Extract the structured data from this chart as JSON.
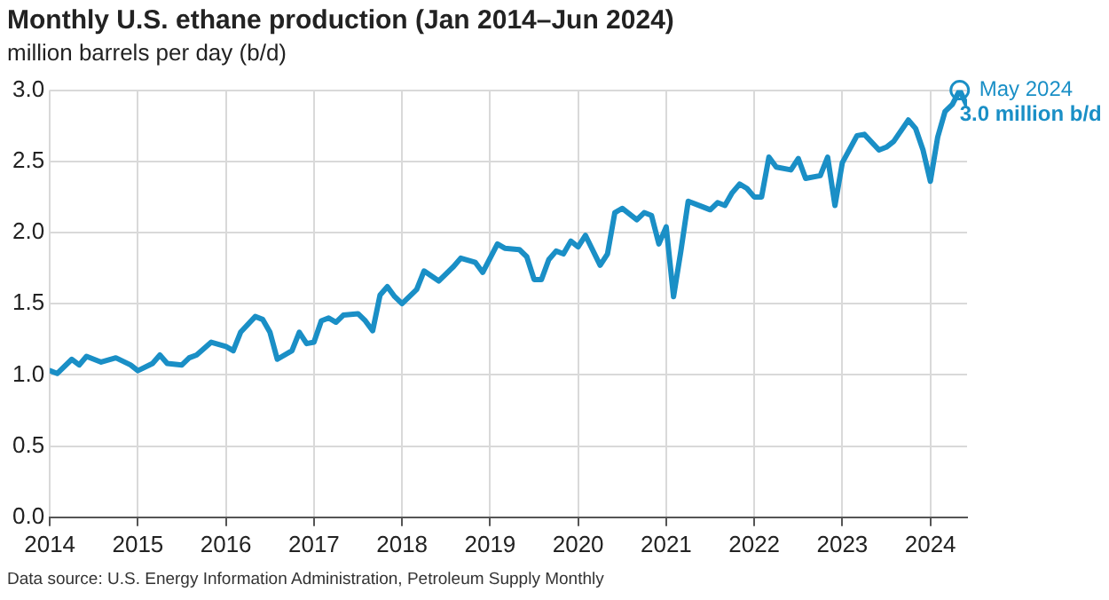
{
  "chart_data": {
    "type": "line",
    "title": "Monthly U.S. ethane production (Jan 2014–Jun 2024)",
    "ylabel": "million barrels per day (b/d)",
    "x": [
      "2014-01",
      "2014-02",
      "2014-04",
      "2014-05",
      "2014-06",
      "2014-08",
      "2014-10",
      "2014-12",
      "2015-01",
      "2015-03",
      "2015-04",
      "2015-05",
      "2015-07",
      "2015-08",
      "2015-09",
      "2015-11",
      "2016-01",
      "2016-02",
      "2016-03",
      "2016-05",
      "2016-06",
      "2016-07",
      "2016-08",
      "2016-10",
      "2016-11",
      "2016-12",
      "2017-01",
      "2017-02",
      "2017-03",
      "2017-04",
      "2017-05",
      "2017-07",
      "2017-08",
      "2017-09",
      "2017-10",
      "2017-11",
      "2017-12",
      "2018-01",
      "2018-03",
      "2018-04",
      "2018-06",
      "2018-08",
      "2018-09",
      "2018-11",
      "2018-12",
      "2019-02",
      "2019-03",
      "2019-05",
      "2019-06",
      "2019-07",
      "2019-08",
      "2019-09",
      "2019-10",
      "2019-11",
      "2019-12",
      "2020-01",
      "2020-02",
      "2020-04",
      "2020-05",
      "2020-06",
      "2020-07",
      "2020-09",
      "2020-10",
      "2020-11",
      "2020-12",
      "2021-01",
      "2021-02",
      "2021-03",
      "2021-04",
      "2021-06",
      "2021-07",
      "2021-08",
      "2021-09",
      "2021-10",
      "2021-11",
      "2021-12",
      "2022-01",
      "2022-02",
      "2022-03",
      "2022-04",
      "2022-06",
      "2022-07",
      "2022-08",
      "2022-10",
      "2022-11",
      "2022-12",
      "2023-01",
      "2023-03",
      "2023-04",
      "2023-06",
      "2023-07",
      "2023-08",
      "2023-10",
      "2023-11",
      "2023-12",
      "2024-01",
      "2024-02",
      "2024-03",
      "2024-04",
      "2024-05",
      "2024-06"
    ],
    "series": [
      {
        "color": "#1a8fc6",
        "values": [
          1.03,
          1.01,
          1.11,
          1.07,
          1.13,
          1.09,
          1.12,
          1.07,
          1.03,
          1.08,
          1.14,
          1.08,
          1.07,
          1.12,
          1.14,
          1.23,
          1.2,
          1.17,
          1.3,
          1.41,
          1.39,
          1.3,
          1.11,
          1.17,
          1.3,
          1.22,
          1.23,
          1.38,
          1.4,
          1.37,
          1.42,
          1.43,
          1.38,
          1.31,
          1.56,
          1.62,
          1.55,
          1.5,
          1.6,
          1.73,
          1.66,
          1.76,
          1.82,
          1.79,
          1.72,
          1.92,
          1.89,
          1.88,
          1.83,
          1.67,
          1.67,
          1.81,
          1.87,
          1.85,
          1.94,
          1.9,
          1.98,
          1.77,
          1.85,
          2.14,
          2.17,
          2.09,
          2.14,
          2.12,
          1.92,
          2.04,
          1.55,
          1.87,
          2.22,
          2.18,
          2.16,
          2.21,
          2.19,
          2.28,
          2.34,
          2.31,
          2.25,
          2.25,
          2.53,
          2.46,
          2.44,
          2.52,
          2.38,
          2.4,
          2.53,
          2.19,
          2.49,
          2.68,
          2.69,
          2.58,
          2.6,
          2.64,
          2.79,
          2.73,
          2.58,
          2.36,
          2.67,
          2.85,
          2.9,
          3.0,
          2.89
        ]
      }
    ],
    "xlim": [
      "2014-01",
      "2024-06"
    ],
    "xticks": [
      "2014",
      "2015",
      "2016",
      "2017",
      "2018",
      "2019",
      "2020",
      "2021",
      "2022",
      "2023",
      "2024"
    ],
    "ylim": [
      0,
      3
    ],
    "yticks": [
      {
        "value": 0,
        "label": "0.0"
      },
      {
        "value": 0.5,
        "label": "0.5"
      },
      {
        "value": 1,
        "label": "1.0"
      },
      {
        "value": 1.5,
        "label": "1.5"
      },
      {
        "value": 2,
        "label": "2.0"
      },
      {
        "value": 2.5,
        "label": "2.5"
      },
      {
        "value": 3,
        "label": "3.0"
      }
    ],
    "grid": true,
    "legend": false,
    "marker": "none",
    "line_style": "solid",
    "annotations": [
      {
        "text": "May 2024\n3.0 million b/d",
        "x": "2024-05",
        "y": 3.0
      },
      "Data source: U.S. Energy Information Administration, Petroleum Supply Monthly"
    ]
  }
}
